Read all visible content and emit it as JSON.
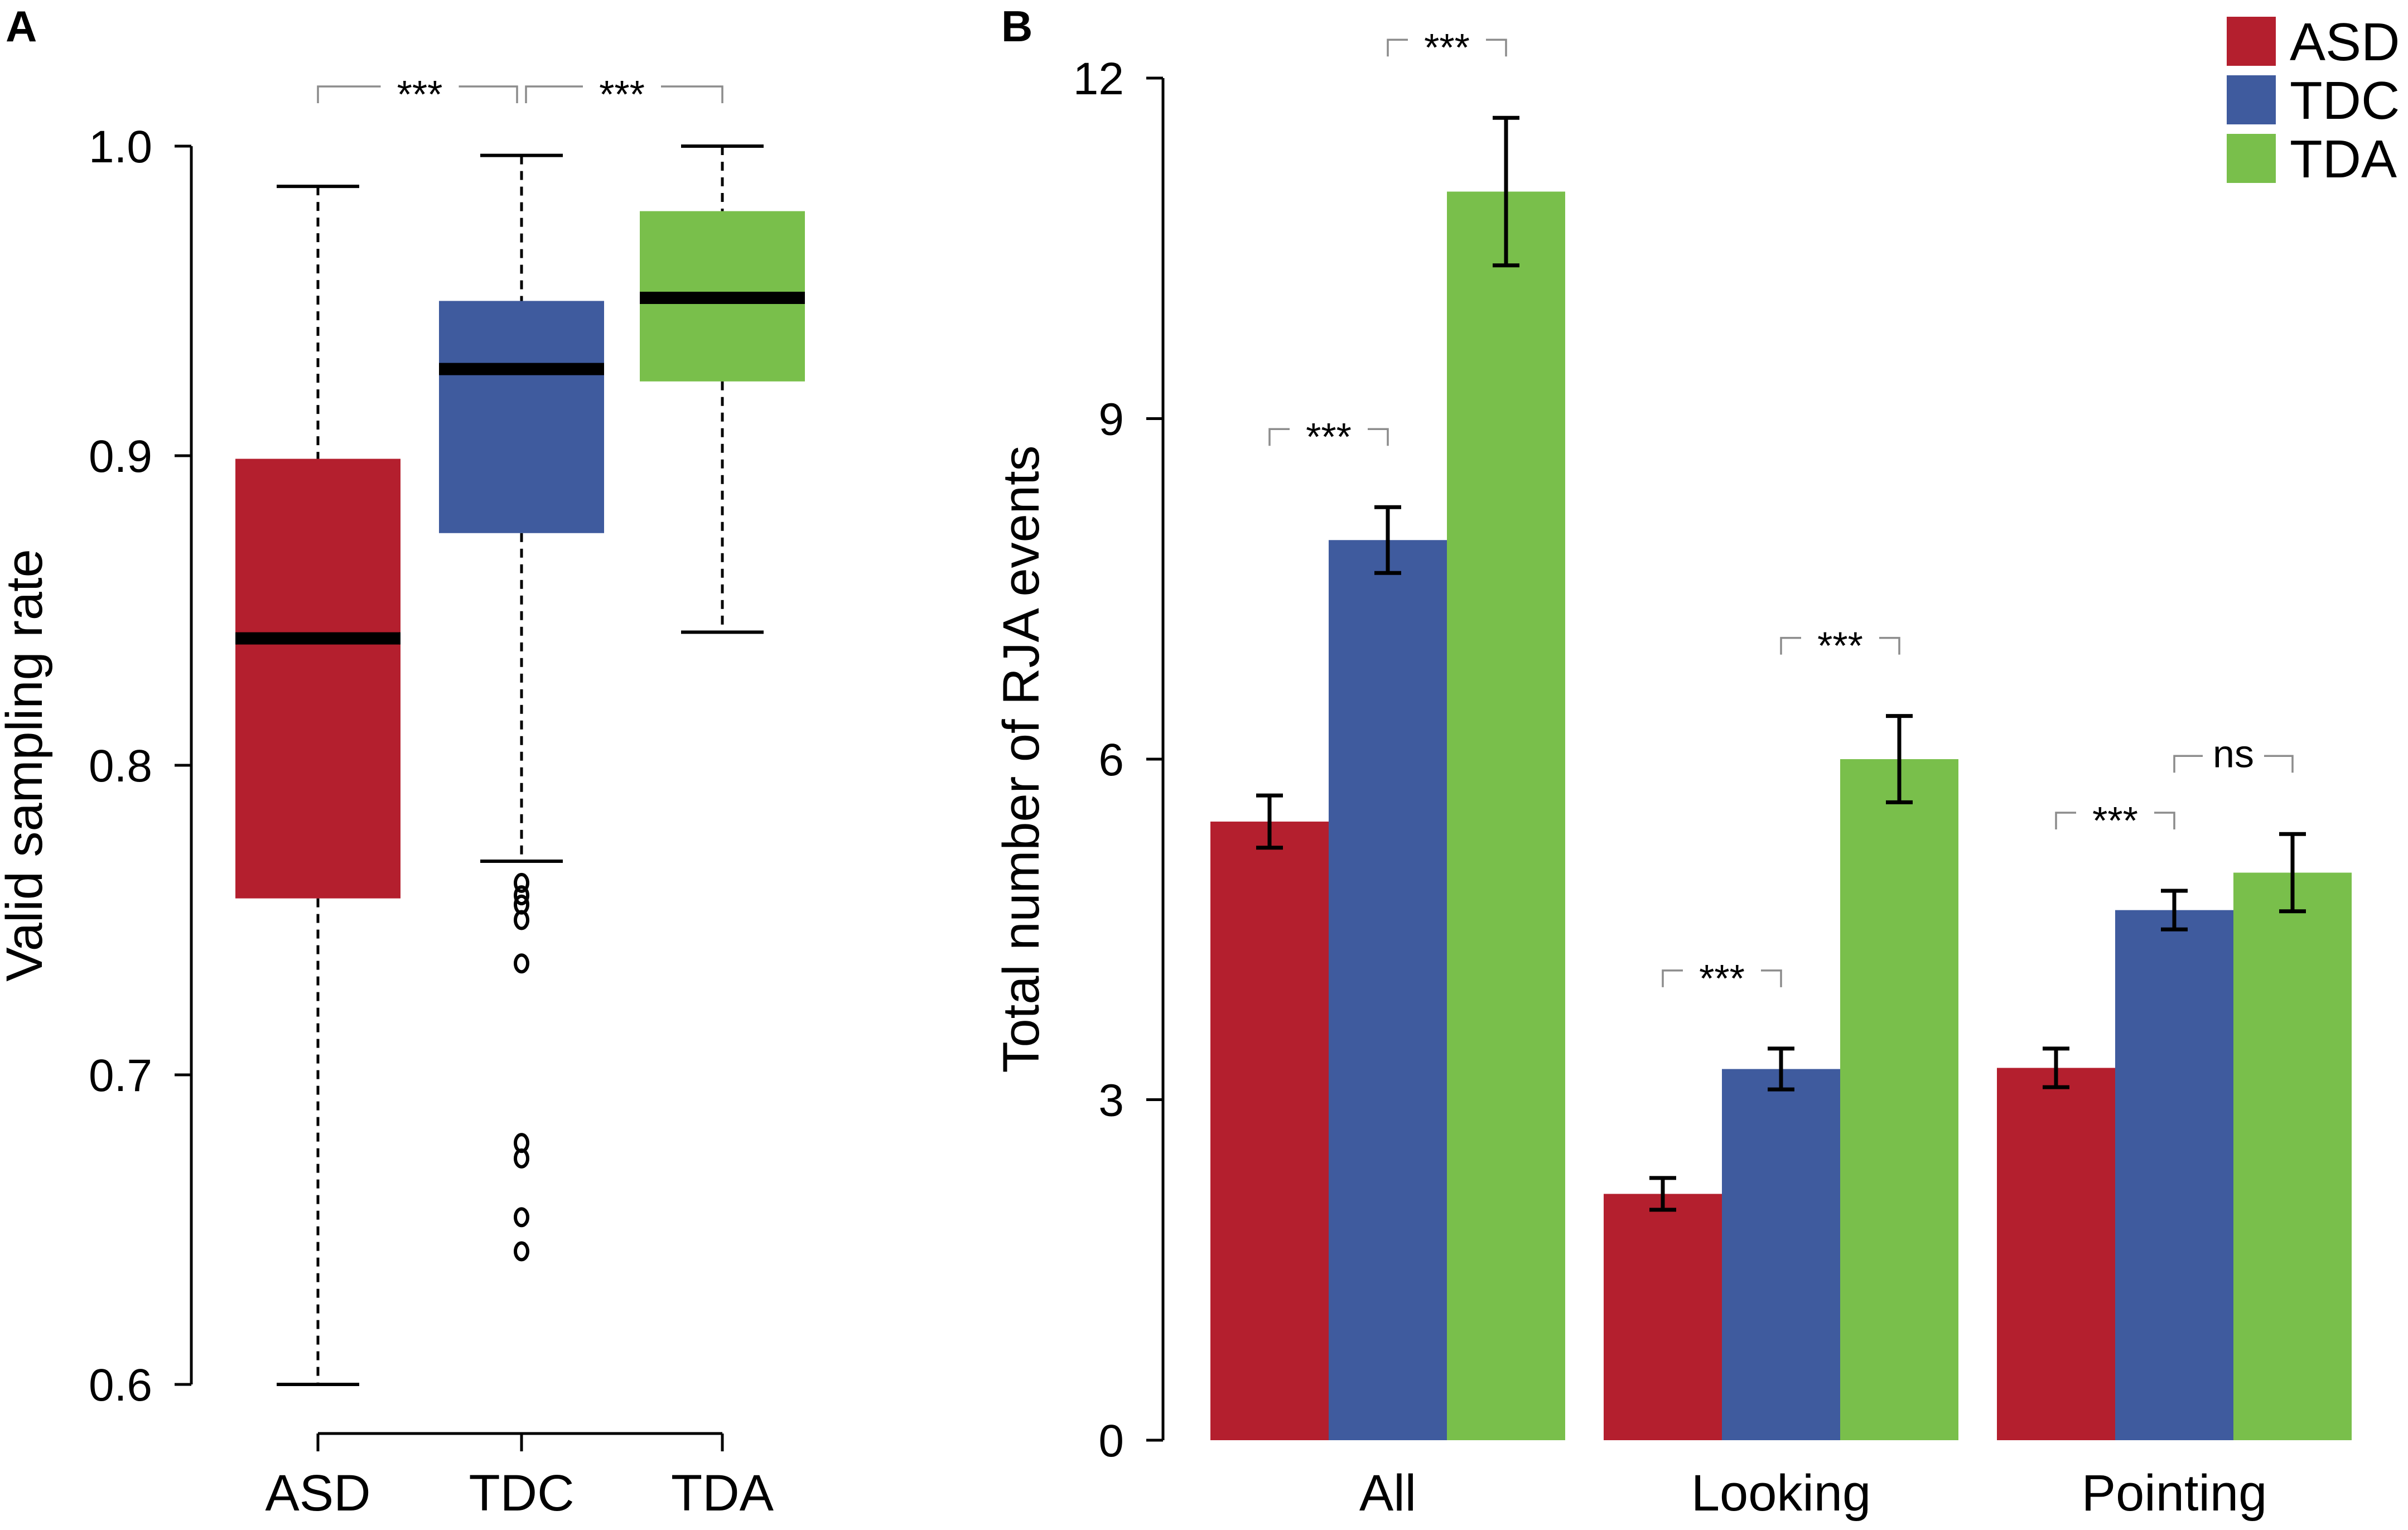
{
  "figure": {
    "panels": [
      {
        "letter": "A",
        "chart_data": {
          "type": "boxplot",
          "title": "",
          "xlabel": "",
          "ylabel": "Valid sampling rate",
          "ylim": [
            0.6,
            1.0
          ],
          "yticks": [
            0.6,
            0.7,
            0.8,
            0.9,
            1.0
          ],
          "ytick_labels": [
            "0.6",
            "0.7",
            "0.8",
            "0.9",
            "1.0"
          ],
          "categories": [
            "ASD",
            "TDC",
            "TDA"
          ],
          "boxes": [
            {
              "name": "ASD",
              "min": 0.6,
              "q1": 0.757,
              "median": 0.841,
              "q3": 0.899,
              "max": 0.987,
              "outliers": [],
              "color": "#b41f2e"
            },
            {
              "name": "TDC",
              "min": 0.769,
              "q1": 0.875,
              "median": 0.928,
              "q3": 0.95,
              "max": 0.997,
              "outliers": [
                0.762,
                0.758,
                0.755,
                0.75,
                0.736,
                0.678,
                0.673,
                0.654,
                0.643
              ],
              "color": "#3f5b9e"
            },
            {
              "name": "TDA",
              "min": 0.843,
              "q1": 0.924,
              "median": 0.951,
              "q3": 0.979,
              "max": 1.0,
              "outliers": [],
              "color": "#79bf4b"
            }
          ],
          "annotations": [
            {
              "from": "ASD",
              "to": "TDC",
              "text": "***"
            },
            {
              "from": "TDC",
              "to": "TDA",
              "text": "***"
            }
          ]
        }
      },
      {
        "letter": "B",
        "chart_data": {
          "type": "bar",
          "title": "",
          "xlabel": "",
          "ylabel": "Total number of RJA events",
          "ylim": [
            0,
            12
          ],
          "yticks": [
            0,
            3,
            6,
            9,
            12
          ],
          "ytick_labels": [
            "0",
            "3",
            "6",
            "9",
            "12"
          ],
          "categories": [
            "All",
            "Looking",
            "Pointing"
          ],
          "series": [
            {
              "name": "ASD",
              "color": "#b41f2e",
              "values": [
                5.45,
                2.17,
                3.28
              ],
              "errors": [
                0.23,
                0.14,
                0.17
              ]
            },
            {
              "name": "TDC",
              "color": "#3f5b9e",
              "values": [
                7.93,
                3.27,
                4.67
              ],
              "errors": [
                0.29,
                0.18,
                0.17
              ]
            },
            {
              "name": "TDA",
              "color": "#79bf4b",
              "values": [
                11.0,
                6.0,
                5.0
              ],
              "errors": [
                0.65,
                0.38,
                0.34
              ]
            }
          ],
          "annotations": [
            {
              "category": "All",
              "from": "ASD",
              "to": "TDC",
              "text": "***"
            },
            {
              "category": "All",
              "from": "TDC",
              "to": "TDA",
              "text": "***"
            },
            {
              "category": "Looking",
              "from": "ASD",
              "to": "TDC",
              "text": "***"
            },
            {
              "category": "Looking",
              "from": "TDC",
              "to": "TDA",
              "text": "***"
            },
            {
              "category": "Pointing",
              "from": "ASD",
              "to": "TDC",
              "text": "***"
            },
            {
              "category": "Pointing",
              "from": "TDC",
              "to": "TDA",
              "text": "ns"
            }
          ],
          "legend": {
            "position": "top-right",
            "entries": [
              "ASD",
              "TDC",
              "TDA"
            ]
          }
        }
      }
    ]
  }
}
